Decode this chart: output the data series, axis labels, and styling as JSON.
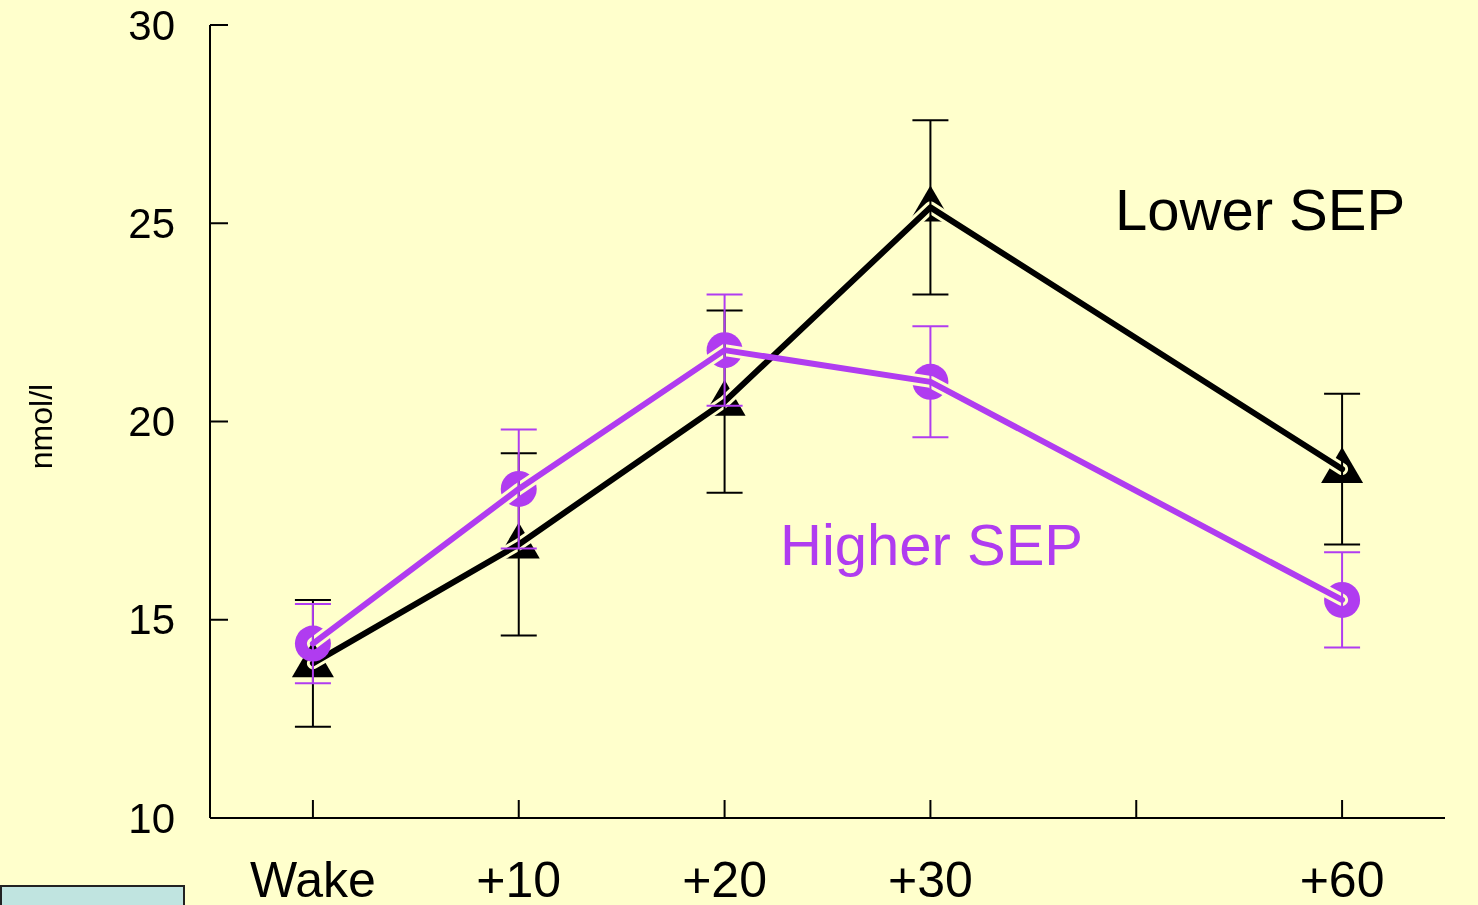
{
  "chart_data": {
    "type": "line",
    "ylabel": "nmol/l",
    "categories": [
      "Wake",
      "+10",
      "+20",
      "+30",
      null,
      "+60"
    ],
    "ylim": [
      10,
      30
    ],
    "yticks": [
      10,
      15,
      20,
      25,
      30
    ],
    "series": [
      {
        "name": "Lower SEP",
        "color": "#000000",
        "marker": "triangle",
        "values": [
          13.9,
          16.9,
          20.5,
          25.4,
          null,
          18.8
        ],
        "errors": [
          [
            12.3,
            15.5
          ],
          [
            14.6,
            19.2
          ],
          [
            18.2,
            22.8
          ],
          [
            23.2,
            27.6
          ],
          null,
          [
            16.9,
            20.7
          ]
        ]
      },
      {
        "name": "Higher SEP",
        "color": "#b03cf0",
        "marker": "circle",
        "values": [
          14.4,
          18.3,
          21.8,
          21.0,
          null,
          15.5
        ],
        "errors": [
          [
            13.4,
            15.4
          ],
          [
            16.8,
            19.8
          ],
          [
            20.4,
            23.2
          ],
          [
            19.6,
            22.4
          ],
          null,
          [
            14.3,
            16.7
          ]
        ]
      }
    ]
  }
}
